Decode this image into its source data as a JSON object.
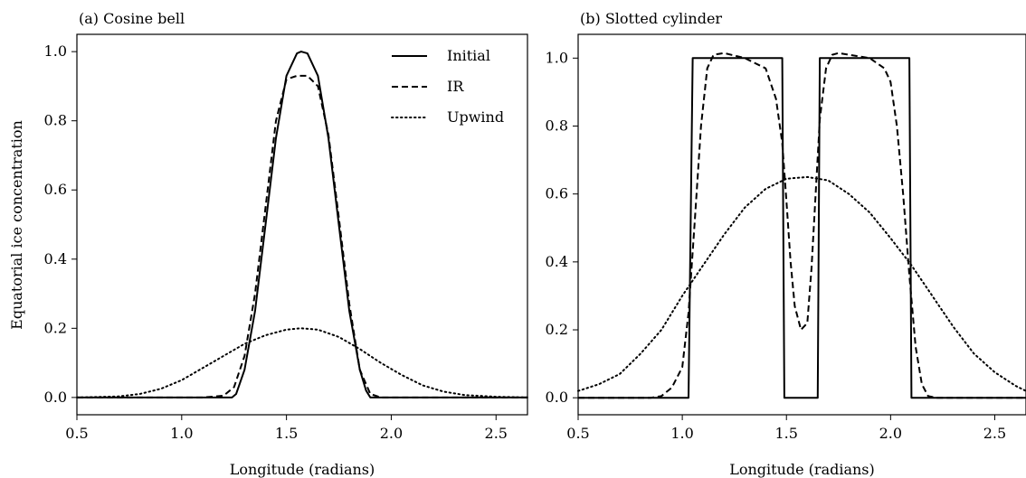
{
  "figure": {
    "ylabel": "Equatorial ice concentration"
  },
  "chart_data": [
    {
      "type": "line",
      "title": "(a) Cosine bell",
      "xlabel": "Longitude (radians)",
      "ylabel": "Equatorial ice concentration",
      "xlim": [
        0.5,
        2.65
      ],
      "ylim": [
        -0.05,
        1.05
      ],
      "xticks": [
        0.5,
        1.0,
        1.5,
        2.0,
        2.5
      ],
      "xtick_labels": [
        "0.5",
        "1.0",
        "1.5",
        "2.0",
        "2.5"
      ],
      "yticks": [
        0.0,
        0.2,
        0.4,
        0.6,
        0.8,
        1.0
      ],
      "ytick_labels": [
        "0.0",
        "0.2",
        "0.4",
        "0.6",
        "0.8",
        "1.0"
      ],
      "grid": false,
      "legend": "top-right",
      "series": [
        {
          "name": "Initial",
          "style": "solid",
          "x": [
            0.5,
            1.2,
            1.24,
            1.26,
            1.3,
            1.35,
            1.4,
            1.45,
            1.5,
            1.55,
            1.57,
            1.6,
            1.65,
            1.7,
            1.75,
            1.8,
            1.85,
            1.88,
            1.9,
            2.0,
            2.65
          ],
          "y": [
            0.0,
            0.0,
            0.0,
            0.01,
            0.08,
            0.25,
            0.5,
            0.75,
            0.93,
            0.995,
            1.0,
            0.995,
            0.93,
            0.75,
            0.5,
            0.25,
            0.08,
            0.02,
            0.0,
            0.0,
            0.0
          ]
        },
        {
          "name": "IR",
          "style": "dashed",
          "x": [
            0.5,
            1.1,
            1.2,
            1.25,
            1.3,
            1.35,
            1.4,
            1.45,
            1.5,
            1.55,
            1.6,
            1.65,
            1.7,
            1.75,
            1.8,
            1.85,
            1.9,
            1.95,
            2.65
          ],
          "y": [
            0.0,
            0.0,
            0.005,
            0.03,
            0.12,
            0.3,
            0.55,
            0.8,
            0.92,
            0.93,
            0.93,
            0.9,
            0.76,
            0.52,
            0.27,
            0.08,
            0.01,
            0.0,
            0.0
          ]
        },
        {
          "name": "Upwind",
          "style": "dotted",
          "x": [
            0.5,
            0.7,
            0.8,
            0.9,
            1.0,
            1.1,
            1.2,
            1.3,
            1.4,
            1.5,
            1.57,
            1.65,
            1.75,
            1.85,
            1.95,
            2.05,
            2.15,
            2.25,
            2.35,
            2.5,
            2.65
          ],
          "y": [
            0.0,
            0.003,
            0.01,
            0.025,
            0.05,
            0.085,
            0.12,
            0.155,
            0.18,
            0.196,
            0.2,
            0.196,
            0.175,
            0.14,
            0.1,
            0.065,
            0.035,
            0.017,
            0.007,
            0.002,
            0.0
          ]
        }
      ]
    },
    {
      "type": "line",
      "title": "(b) Slotted cylinder",
      "xlabel": "Longitude (radians)",
      "xlim": [
        0.5,
        2.65
      ],
      "ylim": [
        -0.05,
        1.07
      ],
      "xticks": [
        0.5,
        1.0,
        1.5,
        2.0,
        2.5
      ],
      "xtick_labels": [
        "0.5",
        "1.0",
        "1.5",
        "2.0",
        "2.5"
      ],
      "yticks": [
        0.0,
        0.2,
        0.4,
        0.6,
        0.8,
        1.0
      ],
      "ytick_labels": [
        "0.0",
        "0.2",
        "0.4",
        "0.6",
        "0.8",
        "1.0"
      ],
      "grid": false,
      "series": [
        {
          "name": "Initial",
          "style": "solid",
          "x": [
            0.5,
            1.03,
            1.05,
            1.48,
            1.49,
            1.65,
            1.66,
            2.09,
            2.1,
            2.65
          ],
          "y": [
            0.0,
            0.0,
            1.0,
            1.0,
            0.0,
            0.0,
            1.0,
            1.0,
            0.0,
            0.0
          ]
        },
        {
          "name": "IR",
          "style": "dashed",
          "x": [
            0.5,
            0.85,
            0.9,
            0.95,
            1.0,
            1.03,
            1.06,
            1.09,
            1.12,
            1.15,
            1.2,
            1.3,
            1.4,
            1.45,
            1.48,
            1.5,
            1.52,
            1.54,
            1.57,
            1.6,
            1.62,
            1.64,
            1.66,
            1.69,
            1.72,
            1.75,
            1.8,
            1.9,
            1.97,
            2.0,
            2.03,
            2.06,
            2.09,
            2.12,
            2.15,
            2.18,
            2.22,
            2.65
          ],
          "y": [
            0.0,
            0.0,
            0.005,
            0.03,
            0.09,
            0.25,
            0.52,
            0.8,
            0.97,
            1.01,
            1.015,
            1.0,
            0.97,
            0.88,
            0.75,
            0.58,
            0.4,
            0.27,
            0.2,
            0.22,
            0.38,
            0.6,
            0.82,
            0.97,
            1.01,
            1.015,
            1.01,
            1.0,
            0.97,
            0.93,
            0.8,
            0.6,
            0.36,
            0.15,
            0.04,
            0.005,
            0.0,
            0.0
          ]
        },
        {
          "name": "Upwind",
          "style": "dotted",
          "x": [
            0.5,
            0.6,
            0.7,
            0.8,
            0.9,
            1.0,
            1.1,
            1.2,
            1.3,
            1.4,
            1.5,
            1.6,
            1.7,
            1.8,
            1.9,
            2.0,
            2.1,
            2.2,
            2.3,
            2.4,
            2.5,
            2.6,
            2.65
          ],
          "y": [
            0.02,
            0.04,
            0.07,
            0.13,
            0.2,
            0.3,
            0.39,
            0.48,
            0.56,
            0.615,
            0.645,
            0.65,
            0.64,
            0.6,
            0.545,
            0.47,
            0.39,
            0.3,
            0.21,
            0.13,
            0.075,
            0.035,
            0.02
          ]
        }
      ]
    }
  ]
}
